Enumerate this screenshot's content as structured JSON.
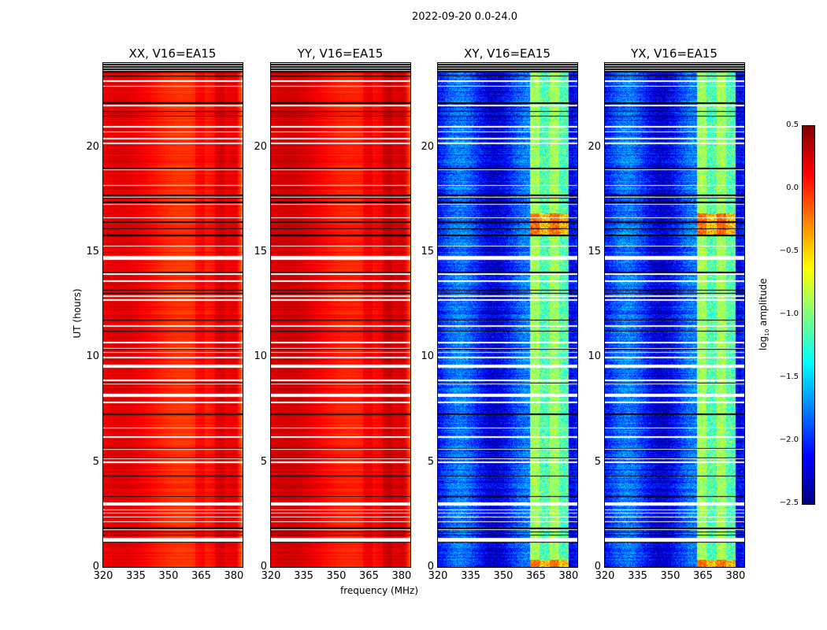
{
  "suptitle": "2022-09-20 0.0-24.0",
  "chart_data": {
    "type": "heatmap",
    "title": "2022-09-20 0.0-24.0",
    "xlabel": "frequency (MHz)",
    "ylabel": "UT (hours)",
    "xlim": [
      320,
      384
    ],
    "ylim": [
      0,
      24
    ],
    "xticks": [
      "320",
      "335",
      "350",
      "365",
      "380"
    ],
    "yticks": [
      "0",
      "5",
      "10",
      "15",
      "20"
    ],
    "panels": [
      {
        "title": "XX, V16=EA15",
        "mean_log_amp": 0.1,
        "type": "parallel"
      },
      {
        "title": "YY, V16=EA15",
        "mean_log_amp": 0.15,
        "type": "parallel"
      },
      {
        "title": "XY, V16=EA15",
        "mean_log_amp": -2.0,
        "band_mhz": [
          362,
          380
        ],
        "band_log_amp": -0.9,
        "type": "cross"
      },
      {
        "title": "YX, V16=EA15",
        "mean_log_amp": -2.0,
        "band_mhz": [
          362,
          380
        ],
        "band_log_amp": -0.9,
        "type": "cross"
      }
    ],
    "colorbar": {
      "label": "log10 amplitude",
      "label_base": "log",
      "label_sub": "10",
      "label_rest": " amplitude",
      "colormap": "jet",
      "range": [
        -2.5,
        0.5
      ],
      "ticks": [
        "0.5",
        "0.0",
        "−0.5",
        "−1.0",
        "−1.5",
        "−2.0",
        "−2.5"
      ]
    }
  }
}
